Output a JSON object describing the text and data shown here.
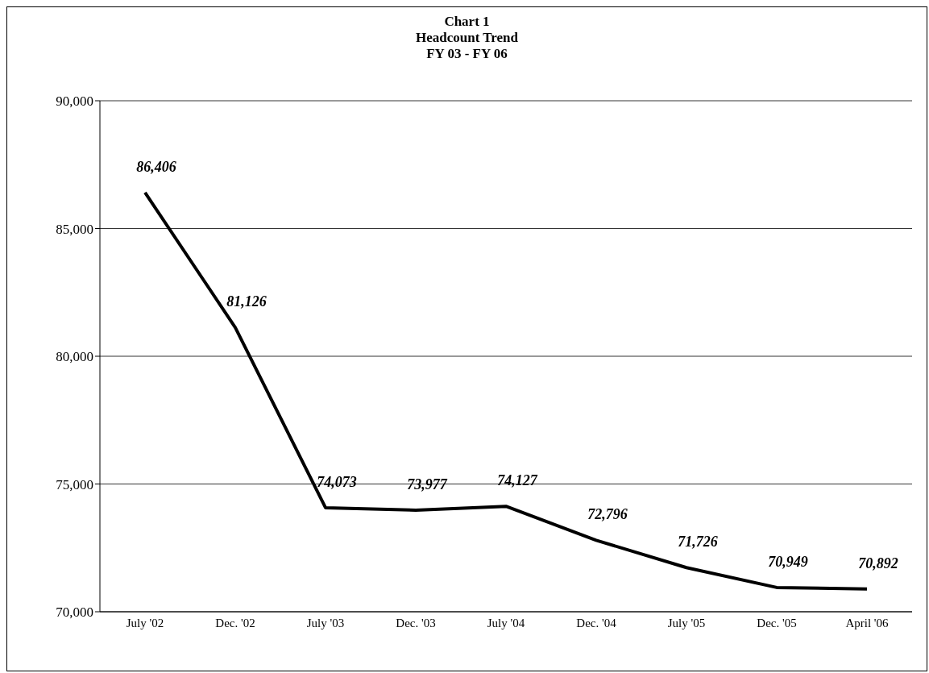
{
  "chart_data": {
    "type": "line",
    "title": "Chart 1\nHeadcount Trend\nFY 03 - FY 06",
    "categories": [
      "July '02",
      "Dec. '02",
      "July '03",
      "Dec. '03",
      "July '04",
      "Dec. '04",
      "July '05",
      "Dec. '05",
      "April '06"
    ],
    "series": [
      {
        "color": "#000000",
        "values": [
          86406,
          81126,
          74073,
          73977,
          74127,
          72796,
          71726,
          70949,
          70892
        ],
        "value_labels": [
          "86,406",
          "81,126",
          "74,073",
          "73,977",
          "74,127",
          "72,796",
          "71,726",
          "70,949",
          "70,892"
        ]
      }
    ],
    "ylim": [
      70000,
      90000
    ],
    "yticks": [
      {
        "value": 70000,
        "label": "70,000"
      },
      {
        "value": 75000,
        "label": "75,000"
      },
      {
        "value": 80000,
        "label": "80,000"
      },
      {
        "value": 85000,
        "label": "85,000"
      },
      {
        "value": 90000,
        "label": "90,000"
      }
    ],
    "grid": "y",
    "marker": "none",
    "line_style": "solid"
  }
}
